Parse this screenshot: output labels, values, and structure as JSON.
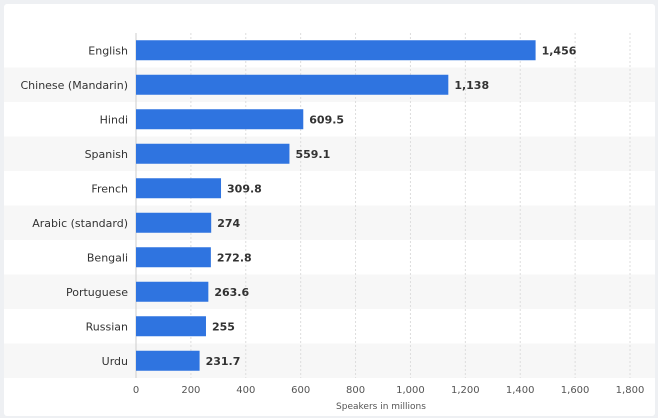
{
  "chart_data": {
    "type": "bar",
    "orientation": "horizontal",
    "categories": [
      "English",
      "Chinese (Mandarin)",
      "Hindi",
      "Spanish",
      "French",
      "Arabic (standard)",
      "Bengali",
      "Portuguese",
      "Russian",
      "Urdu"
    ],
    "values": [
      1456,
      1138,
      609.5,
      559.1,
      309.8,
      274,
      272.8,
      263.6,
      255,
      231.7
    ],
    "value_labels": [
      "1,456",
      "1,138",
      "609.5",
      "559.1",
      "309.8",
      "274",
      "272.8",
      "263.6",
      "255",
      "231.7"
    ],
    "xlabel": "Speakers in millions",
    "xlim": [
      0,
      1800
    ],
    "xticks": [
      0,
      200,
      400,
      600,
      800,
      1000,
      1200,
      1400,
      1600,
      1800
    ],
    "xtick_labels": [
      "0",
      "200",
      "400",
      "600",
      "800",
      "1,000",
      "1,200",
      "1,400",
      "1,600",
      "1,800"
    ],
    "grid": true,
    "colors": {
      "bar": "#2f74e0",
      "band": "#f7f7f7",
      "grid": "#dddddd"
    }
  }
}
